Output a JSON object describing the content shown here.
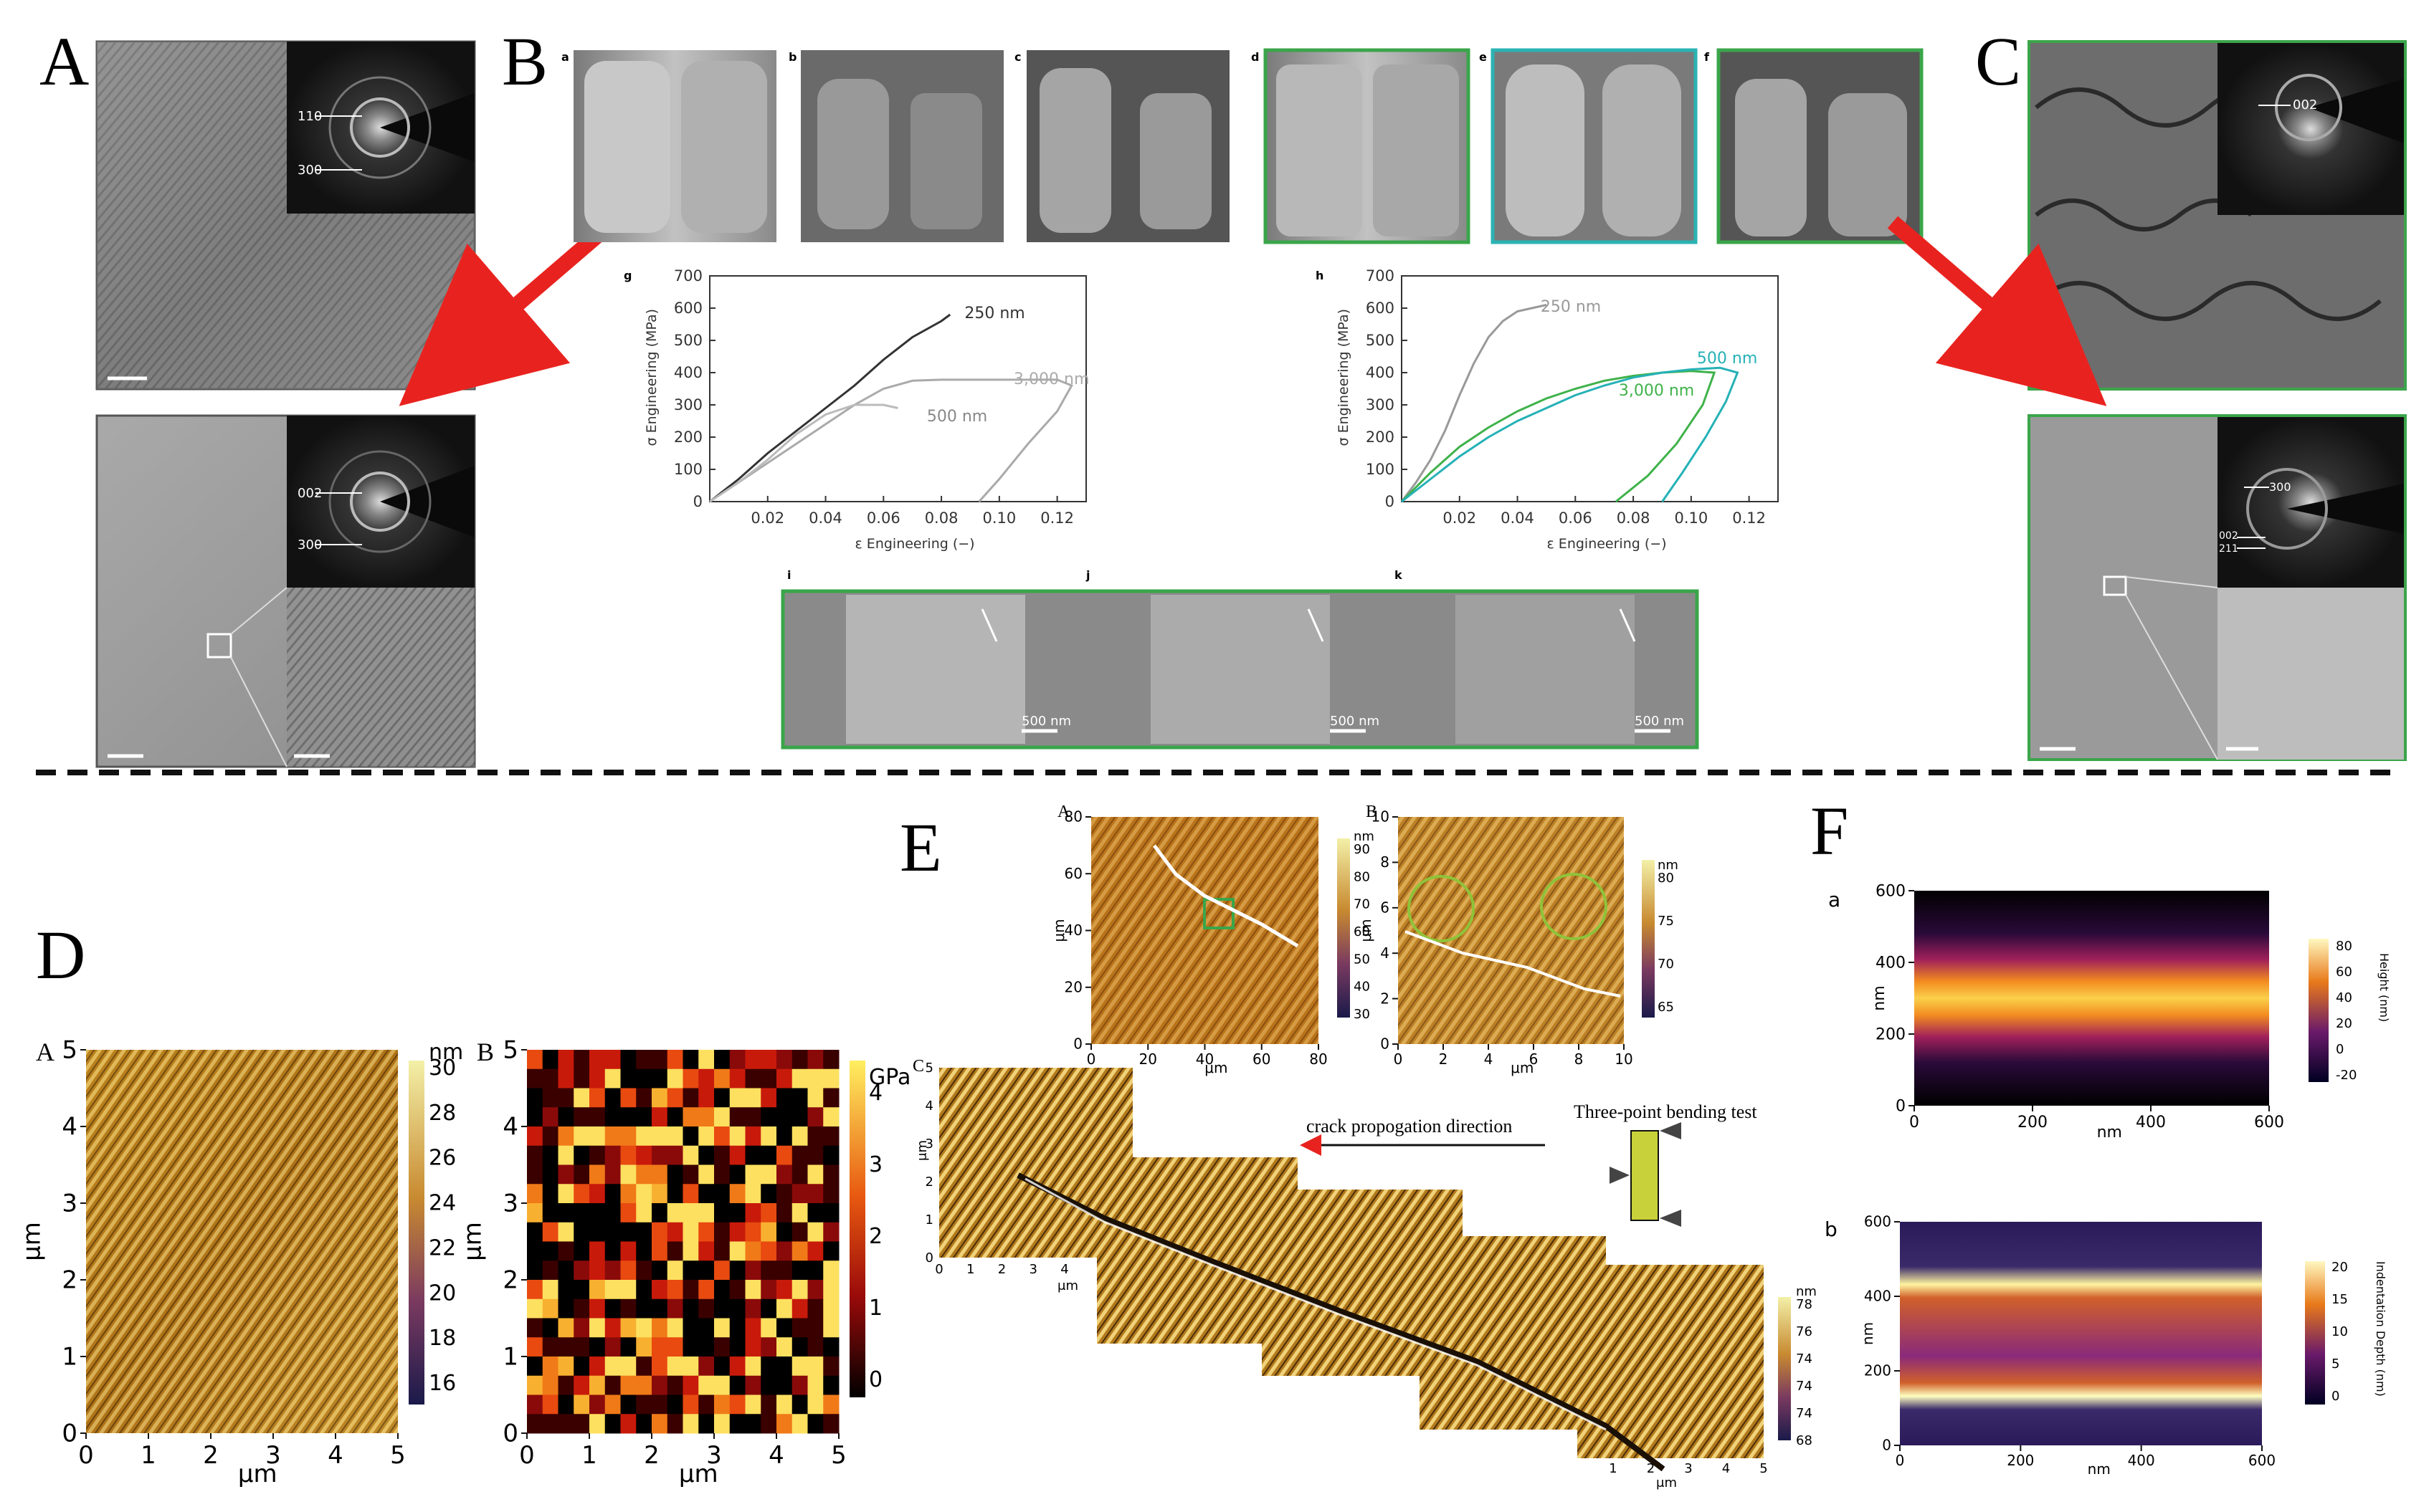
{
  "panel_letters": {
    "A": "A",
    "B": "B",
    "C": "C",
    "D": "D",
    "E": "E",
    "F": "F"
  },
  "sublabels": {
    "B": [
      "a",
      "b",
      "c",
      "d",
      "e",
      "f",
      "g",
      "h",
      "i",
      "j",
      "k"
    ],
    "E": [
      "A",
      "B",
      "C"
    ],
    "D": [
      "A",
      "B"
    ],
    "F": [
      "a",
      "b"
    ]
  },
  "tem": {
    "ring_labels_A1": [
      "110",
      "300"
    ],
    "ring_labels_A2": [
      "002",
      "300"
    ],
    "ring_labels_C1": [
      "002"
    ],
    "ring_labels_C2": [
      "300",
      "002",
      "211"
    ]
  },
  "colors": {
    "arrow": "#e8231f",
    "green_frame": "#3aa54a",
    "teal_frame": "#2bb3b3",
    "dashed": "#111111"
  },
  "chart_data": [
    {
      "type": "line",
      "panel": "g",
      "xlabel": "ε Engineering (−)",
      "ylabel": "σ Engineering (MPa)",
      "xlim": [
        0,
        0.13
      ],
      "ylim": [
        0,
        700
      ],
      "xticks": [
        "0.02",
        "0.04",
        "0.06",
        "0.08",
        "0.10",
        "0.12"
      ],
      "yticks": [
        "0",
        "100",
        "200",
        "300",
        "400",
        "500",
        "600",
        "700"
      ],
      "series": [
        {
          "name": "250 nm",
          "color": "#333333",
          "x": [
            0.0,
            0.01,
            0.02,
            0.03,
            0.04,
            0.05,
            0.06,
            0.07,
            0.08,
            0.083
          ],
          "y": [
            0,
            70,
            150,
            220,
            290,
            360,
            440,
            510,
            560,
            580
          ]
        },
        {
          "name": "3,000 nm",
          "color": "#aaaaaa",
          "x": [
            0.0,
            0.01,
            0.02,
            0.03,
            0.04,
            0.05,
            0.06,
            0.07,
            0.08,
            0.09,
            0.1,
            0.11,
            0.12,
            0.125,
            0.12,
            0.11,
            0.1,
            0.093
          ],
          "y": [
            0,
            60,
            120,
            180,
            240,
            300,
            350,
            375,
            378,
            378,
            378,
            378,
            378,
            360,
            280,
            180,
            70,
            0
          ]
        },
        {
          "name": "500 nm",
          "color": "#bbbbbb",
          "x": [
            0.0,
            0.01,
            0.02,
            0.03,
            0.04,
            0.05,
            0.06,
            0.065
          ],
          "y": [
            0,
            60,
            130,
            210,
            270,
            300,
            300,
            290
          ]
        }
      ],
      "annotations": [
        "250 nm",
        "3,000 nm",
        "500 nm"
      ]
    },
    {
      "type": "line",
      "panel": "h",
      "xlabel": "ε Engineering (−)",
      "ylabel": "σ Engineering (MPa)",
      "xlim": [
        0,
        0.13
      ],
      "ylim": [
        0,
        700
      ],
      "xticks": [
        "0.02",
        "0.04",
        "0.06",
        "0.08",
        "0.10",
        "0.12"
      ],
      "yticks": [
        "0",
        "100",
        "200",
        "300",
        "400",
        "500",
        "600",
        "700"
      ],
      "series": [
        {
          "name": "250 nm",
          "color": "#999999",
          "x": [
            0.0,
            0.005,
            0.01,
            0.015,
            0.02,
            0.025,
            0.03,
            0.035,
            0.04,
            0.045,
            0.05
          ],
          "y": [
            0,
            60,
            130,
            220,
            330,
            430,
            510,
            560,
            590,
            600,
            610
          ]
        },
        {
          "name": "3,000 nm",
          "color": "#3fb24a",
          "x": [
            0.0,
            0.01,
            0.02,
            0.03,
            0.04,
            0.05,
            0.06,
            0.07,
            0.08,
            0.09,
            0.1,
            0.108,
            0.104,
            0.095,
            0.085,
            0.074
          ],
          "y": [
            0,
            90,
            170,
            230,
            280,
            320,
            350,
            375,
            390,
            400,
            405,
            400,
            300,
            180,
            80,
            0
          ]
        },
        {
          "name": "500 nm",
          "color": "#25b1b6",
          "x": [
            0.0,
            0.01,
            0.02,
            0.03,
            0.04,
            0.05,
            0.06,
            0.07,
            0.08,
            0.09,
            0.1,
            0.11,
            0.116,
            0.112,
            0.105,
            0.097,
            0.09
          ],
          "y": [
            0,
            70,
            140,
            200,
            250,
            290,
            330,
            360,
            385,
            400,
            410,
            415,
            400,
            310,
            200,
            90,
            0
          ]
        }
      ],
      "annotations": [
        "250 nm",
        "500 nm",
        "3,000 nm"
      ]
    },
    {
      "type": "heatmap",
      "panel": "D-A",
      "xlabel": "μm",
      "ylabel": "μm",
      "xticks": [
        "0",
        "1",
        "2",
        "3",
        "4",
        "5"
      ],
      "yticks": [
        "0",
        "1",
        "2",
        "3",
        "4",
        "5"
      ],
      "colorbar": {
        "unit": "nm",
        "ticks": [
          "30",
          "28",
          "26",
          "24",
          "22",
          "20",
          "18",
          "16"
        ]
      }
    },
    {
      "type": "heatmap",
      "panel": "D-B",
      "xlabel": "μm",
      "ylabel": "μm",
      "xticks": [
        "0",
        "1",
        "2",
        "3",
        "4",
        "5"
      ],
      "yticks": [
        "0",
        "1",
        "2",
        "3",
        "4",
        "5"
      ],
      "colorbar": {
        "unit": "GPa",
        "ticks": [
          "4",
          "3",
          "2",
          "1",
          "0"
        ]
      }
    },
    {
      "type": "heatmap",
      "panel": "E-A",
      "ylabel": "μm",
      "xlabel": "μm",
      "xticks": [
        "0",
        "20",
        "40",
        "60",
        "80"
      ],
      "yticks": [
        "0",
        "20",
        "40",
        "60",
        "80"
      ],
      "colorbar": {
        "unit": "nm",
        "ticks": [
          "90",
          "80",
          "70",
          "60",
          "50",
          "40",
          "30"
        ]
      }
    },
    {
      "type": "heatmap",
      "panel": "E-B",
      "ylabel": "μm",
      "xlabel": "μm",
      "xticks": [
        "0",
        "2",
        "4",
        "6",
        "8",
        "10"
      ],
      "yticks": [
        "0",
        "2",
        "4",
        "6",
        "8",
        "10"
      ],
      "colorbar": {
        "unit": "nm",
        "ticks": [
          "80",
          "75",
          "70",
          "65"
        ]
      }
    },
    {
      "type": "heatmap",
      "panel": "F-a",
      "xlabel": "nm",
      "ylabel": "nm",
      "xticks": [
        "0",
        "200",
        "400",
        "600"
      ],
      "yticks": [
        "0",
        "200",
        "400",
        "600"
      ],
      "colorbar": {
        "unit": "Height (nm)",
        "ticks": [
          "80",
          "60",
          "40",
          "20",
          "0",
          "-20"
        ]
      }
    },
    {
      "type": "heatmap",
      "panel": "F-b",
      "xlabel": "nm",
      "ylabel": "nm",
      "xticks": [
        "0",
        "200",
        "400",
        "600"
      ],
      "yticks": [
        "0",
        "200",
        "400",
        "600"
      ],
      "colorbar": {
        "unit": "Indentation Depth (nm)",
        "ticks": [
          "20",
          "15",
          "10",
          "5",
          "0"
        ]
      }
    }
  ],
  "E_C": {
    "xticks": [
      "0",
      "1",
      "2",
      "3",
      "4"
    ],
    "yticks": [
      "0",
      "1",
      "2",
      "3",
      "4",
      "5"
    ],
    "unit": "μm",
    "xticks2": [
      "1",
      "2",
      "3",
      "4",
      "5"
    ],
    "colorbar": {
      "unit": "nm",
      "ticks": [
        "78",
        "76",
        "74",
        "74",
        "74",
        "68"
      ]
    },
    "crack_text": "crack propogation direction",
    "bend_text": "Three-point bending test"
  },
  "scale_bars": [
    "500 nm",
    "500 nm",
    "500 nm"
  ]
}
